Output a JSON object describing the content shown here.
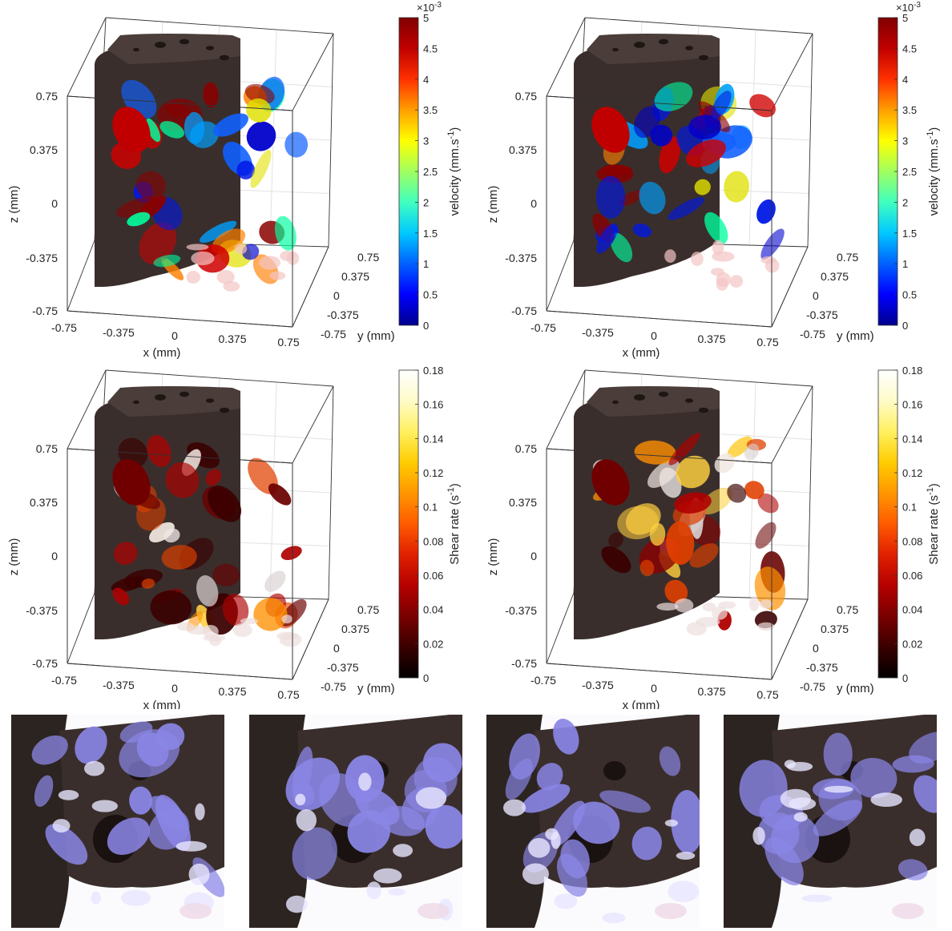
{
  "plots": [
    {
      "id": "velocity-left",
      "colorbar": {
        "label_main": "velocity (mm.s",
        "label_exp": "-1",
        "label_close": ")",
        "multiplier_base": "×10",
        "multiplier_exp": "-3",
        "ticks": [
          "0",
          "0.5",
          "1",
          "1.5",
          "2",
          "2.5",
          "3",
          "3.5",
          "4",
          "4.5",
          "5"
        ],
        "colormap": "jet"
      }
    },
    {
      "id": "velocity-right",
      "colorbar": {
        "label_main": "velocity (mm.s",
        "label_exp": "-1",
        "label_close": ")",
        "multiplier_base": "×10",
        "multiplier_exp": "-3",
        "ticks": [
          "0",
          "0.5",
          "1",
          "1.5",
          "2",
          "2.5",
          "3",
          "3.5",
          "4",
          "4.5",
          "5"
        ],
        "colormap": "jet"
      }
    },
    {
      "id": "shear-left",
      "colorbar": {
        "label_main": "Shear rate (s",
        "label_exp": "-1",
        "label_close": ")",
        "multiplier_base": "",
        "multiplier_exp": "",
        "ticks": [
          "0",
          "0.02",
          "0.04",
          "0.06",
          "0.08",
          "0.1",
          "0.12",
          "0.14",
          "0.16",
          "0.18"
        ],
        "colormap": "hot"
      }
    },
    {
      "id": "shear-right",
      "colorbar": {
        "label_main": "Shear rate (s",
        "label_exp": "-1",
        "label_close": ")",
        "multiplier_base": "",
        "multiplier_exp": "",
        "ticks": [
          "0",
          "0.02",
          "0.04",
          "0.06",
          "0.08",
          "0.1",
          "0.12",
          "0.14",
          "0.16",
          "0.18"
        ],
        "colormap": "hot"
      }
    }
  ],
  "axes": {
    "x_label": "x (mm)",
    "y_label": "y (mm)",
    "z_label": "z (mm)",
    "x_ticks": [
      "-0.75",
      "-0.375",
      "0",
      "0.375",
      "0.75"
    ],
    "y_ticks": [
      "-0.75",
      "-0.375",
      "0",
      "0.375",
      "0.75"
    ],
    "z_ticks": [
      "-0.75",
      "-0.375",
      "0",
      "0.375",
      "0.75"
    ]
  },
  "colors": {
    "solid": "#3a2e2c",
    "fluid_render": "#8a86e6"
  },
  "renders": [
    {
      "id": "render-1"
    },
    {
      "id": "render-2"
    },
    {
      "id": "render-3"
    },
    {
      "id": "render-4"
    }
  ]
}
